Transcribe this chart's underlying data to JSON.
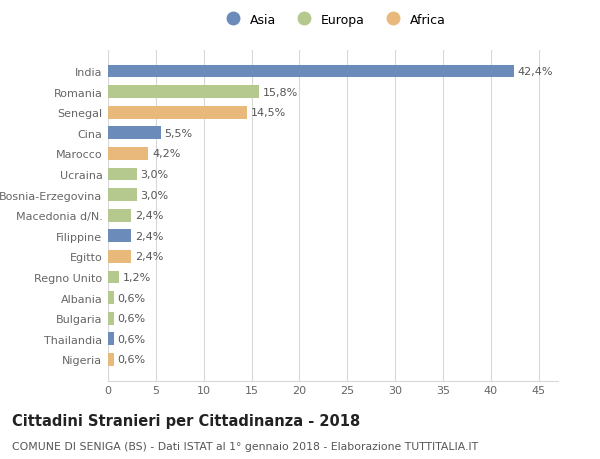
{
  "countries": [
    "India",
    "Romania",
    "Senegal",
    "Cina",
    "Marocco",
    "Ucraina",
    "Bosnia-Erzegovina",
    "Macedonia d/N.",
    "Filippine",
    "Egitto",
    "Regno Unito",
    "Albania",
    "Bulgaria",
    "Thailandia",
    "Nigeria"
  ],
  "values": [
    42.4,
    15.8,
    14.5,
    5.5,
    4.2,
    3.0,
    3.0,
    2.4,
    2.4,
    2.4,
    1.2,
    0.6,
    0.6,
    0.6,
    0.6
  ],
  "labels": [
    "42,4%",
    "15,8%",
    "14,5%",
    "5,5%",
    "4,2%",
    "3,0%",
    "3,0%",
    "2,4%",
    "2,4%",
    "2,4%",
    "1,2%",
    "0,6%",
    "0,6%",
    "0,6%",
    "0,6%"
  ],
  "colors": [
    "#6b8cba",
    "#b5c98e",
    "#e8b97a",
    "#6b8cba",
    "#e8b97a",
    "#b5c98e",
    "#b5c98e",
    "#b5c98e",
    "#6b8cba",
    "#e8b97a",
    "#b5c98e",
    "#b5c98e",
    "#b5c98e",
    "#6b8cba",
    "#e8b97a"
  ],
  "legend": [
    {
      "label": "Asia",
      "color": "#6b8cba"
    },
    {
      "label": "Europa",
      "color": "#b5c98e"
    },
    {
      "label": "Africa",
      "color": "#e8b97a"
    }
  ],
  "xlim": [
    0,
    47
  ],
  "xticks": [
    0,
    5,
    10,
    15,
    20,
    25,
    30,
    35,
    40,
    45
  ],
  "title": "Cittadini Stranieri per Cittadinanza - 2018",
  "subtitle": "COMUNE DI SENIGA (BS) - Dati ISTAT al 1° gennaio 2018 - Elaborazione TUTTITALIA.IT",
  "bg_color": "#ffffff",
  "grid_color": "#d8d8d8",
  "bar_height": 0.62,
  "label_fontsize": 8.0,
  "tick_fontsize": 8.0,
  "title_fontsize": 10.5,
  "subtitle_fontsize": 7.8
}
